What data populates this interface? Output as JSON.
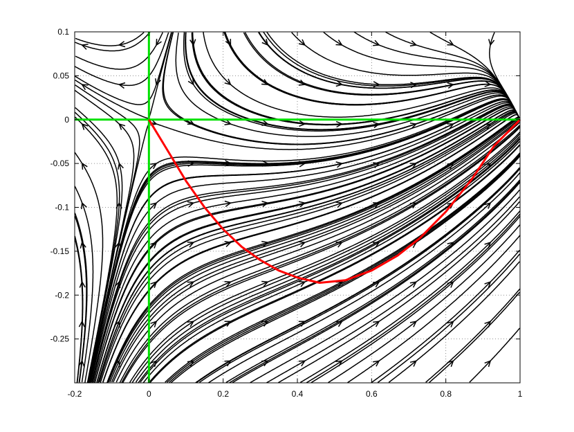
{
  "chart_data": {
    "type": "streamline",
    "title": "",
    "xlabel": "",
    "ylabel": "",
    "xlim": [
      -0.2,
      1.0
    ],
    "ylim": [
      -0.3,
      0.1
    ],
    "grid": true,
    "x_ticks": [
      -0.2,
      0,
      0.2,
      0.4,
      0.6,
      0.8,
      1
    ],
    "x_tick_labels": [
      "-0.2",
      "0",
      "0.2",
      "0.4",
      "0.6",
      "0.8",
      "1"
    ],
    "y_ticks": [
      0.1,
      0.05,
      0,
      -0.05,
      -0.1,
      -0.15,
      -0.2,
      -0.25
    ],
    "y_tick_labels": [
      "0.1",
      "0.05",
      "0",
      "-0.05",
      "-0.1",
      "-0.15",
      "-0.2",
      "-0.25"
    ],
    "vector_field": "dx/dt = x(1-x) - y, dy/dt = 0.6x(1-x)(x-0.5) - 0.5y",
    "highlight_lines": [
      {
        "type": "horizontal",
        "y": 0,
        "color": "#00e000"
      },
      {
        "type": "vertical",
        "x": 0,
        "color": "#00e000"
      }
    ],
    "red_curve": {
      "color": "#ff0000",
      "x": [
        0.0,
        0.05,
        0.1,
        0.15,
        0.2,
        0.25,
        0.3,
        0.35,
        0.4,
        0.46,
        0.53,
        0.6,
        0.67,
        0.73,
        0.8,
        0.87,
        0.93,
        1.0
      ],
      "y": [
        0.0,
        -0.035,
        -0.07,
        -0.1,
        -0.125,
        -0.145,
        -0.16,
        -0.172,
        -0.18,
        -0.186,
        -0.183,
        -0.172,
        -0.155,
        -0.135,
        -0.105,
        -0.068,
        -0.03,
        0.0
      ]
    }
  }
}
